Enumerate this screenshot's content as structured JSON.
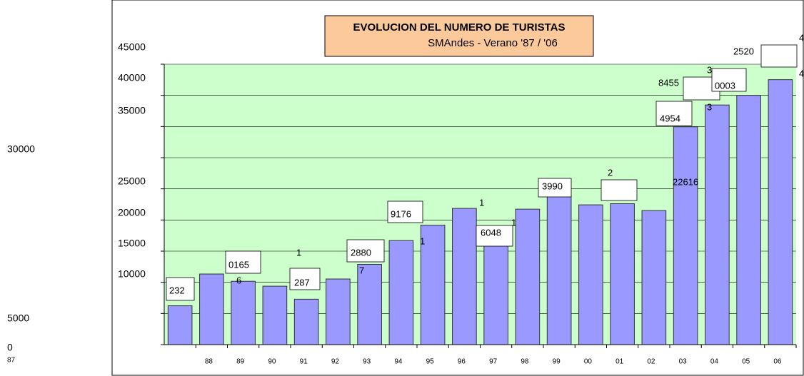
{
  "chart_data": {
    "type": "bar",
    "title": "EVOLUCION DEL NUMERO DE TURISTAS",
    "subtitle": "SMAndes - Verano  '87 / '06",
    "categories": [
      "87",
      "88",
      "89",
      "90",
      "91",
      "92",
      "93",
      "94",
      "95",
      "96",
      "97",
      "98",
      "99",
      "00",
      "01",
      "02",
      "03",
      "04",
      "05",
      "06"
    ],
    "values": [
      6232,
      11330,
      10165,
      9380,
      7287,
      10530,
      12880,
      16700,
      19176,
      21860,
      16048,
      21740,
      23990,
      22430,
      22616,
      21510,
      34954,
      38455,
      40003,
      42520
    ],
    "color": "#9999ff",
    "ylim": [
      0,
      45000
    ],
    "yticks": [
      0,
      5000,
      10000,
      15000,
      20000,
      25000,
      30000,
      35000,
      40000,
      45000
    ],
    "grid": true,
    "plot_background": "#ccffcc",
    "annotations": [
      "232",
      "0165",
      "6",
      "1",
      "287",
      "2880",
      "7",
      "9176",
      "1",
      "1",
      "6048",
      "1",
      "3990",
      "2",
      "22616",
      "4954",
      "8455",
      "3",
      "0003",
      "3",
      "2520",
      "4",
      "4"
    ]
  }
}
